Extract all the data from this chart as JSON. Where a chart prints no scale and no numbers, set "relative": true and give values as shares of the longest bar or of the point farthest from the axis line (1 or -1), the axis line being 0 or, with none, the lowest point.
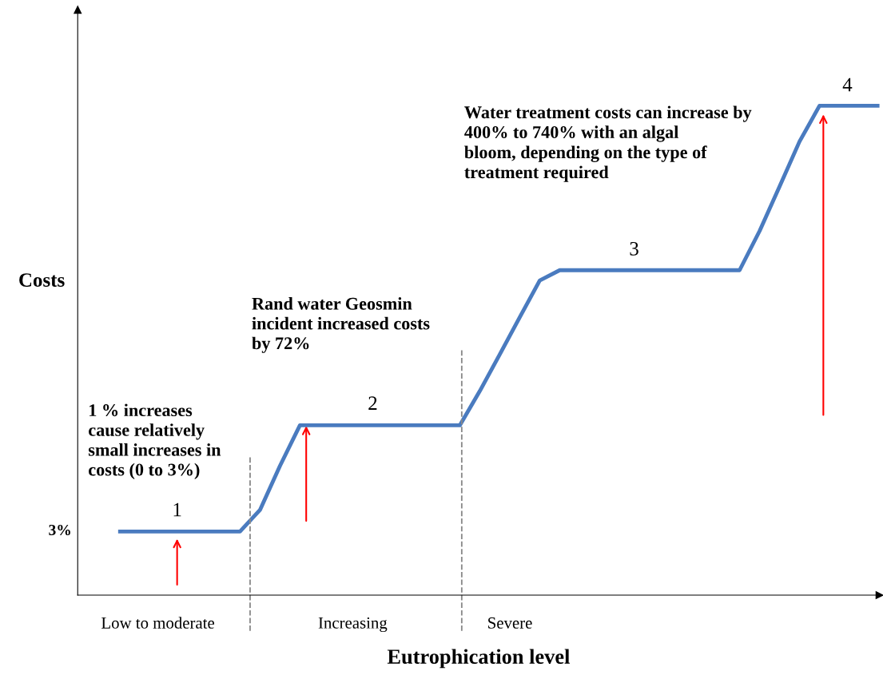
{
  "chart_data": {
    "type": "line",
    "relative": true,
    "xlabel": "Eutrophication level",
    "ylabel": "Costs",
    "categories": [
      null,
      null,
      null,
      null,
      null,
      null,
      null,
      null,
      null,
      null,
      null,
      null,
      null,
      null,
      null,
      null,
      null,
      null,
      null,
      null,
      null,
      null,
      null,
      null,
      null,
      null,
      null,
      null,
      null,
      null,
      null,
      null,
      null,
      null,
      null,
      null,
      null,
      null,
      null
    ],
    "series": [
      {
        "color": "#4a7bbf",
        "values": [
          0.13,
          0.13,
          0.13,
          0.13,
          0.13,
          0.13,
          0.13,
          0.174,
          0.264,
          0.347,
          0.347,
          0.347,
          0.347,
          0.347,
          0.347,
          0.347,
          0.347,
          0.347,
          0.417,
          0.492,
          0.568,
          0.643,
          0.664,
          0.664,
          0.664,
          0.664,
          0.664,
          0.664,
          0.664,
          0.664,
          0.664,
          0.664,
          0.744,
          0.835,
          0.927,
          1,
          1,
          1,
          1
        ]
      }
    ],
    "annotations": [
      "3%",
      "1",
      "2",
      "3",
      "4",
      "1 % increases\ncause relatively\nsmall increases in\ncosts (0 to 3%)",
      "Rand water Geosmin\nincident increased costs\nby 72%",
      "Water treatment costs can increase by\n400% to 740% with an algal\nbloom, depending on the type of\ntreatment required",
      "Low to moderate",
      "Increasing",
      "Severe"
    ],
    "marker": "none",
    "line_style": "solid"
  }
}
